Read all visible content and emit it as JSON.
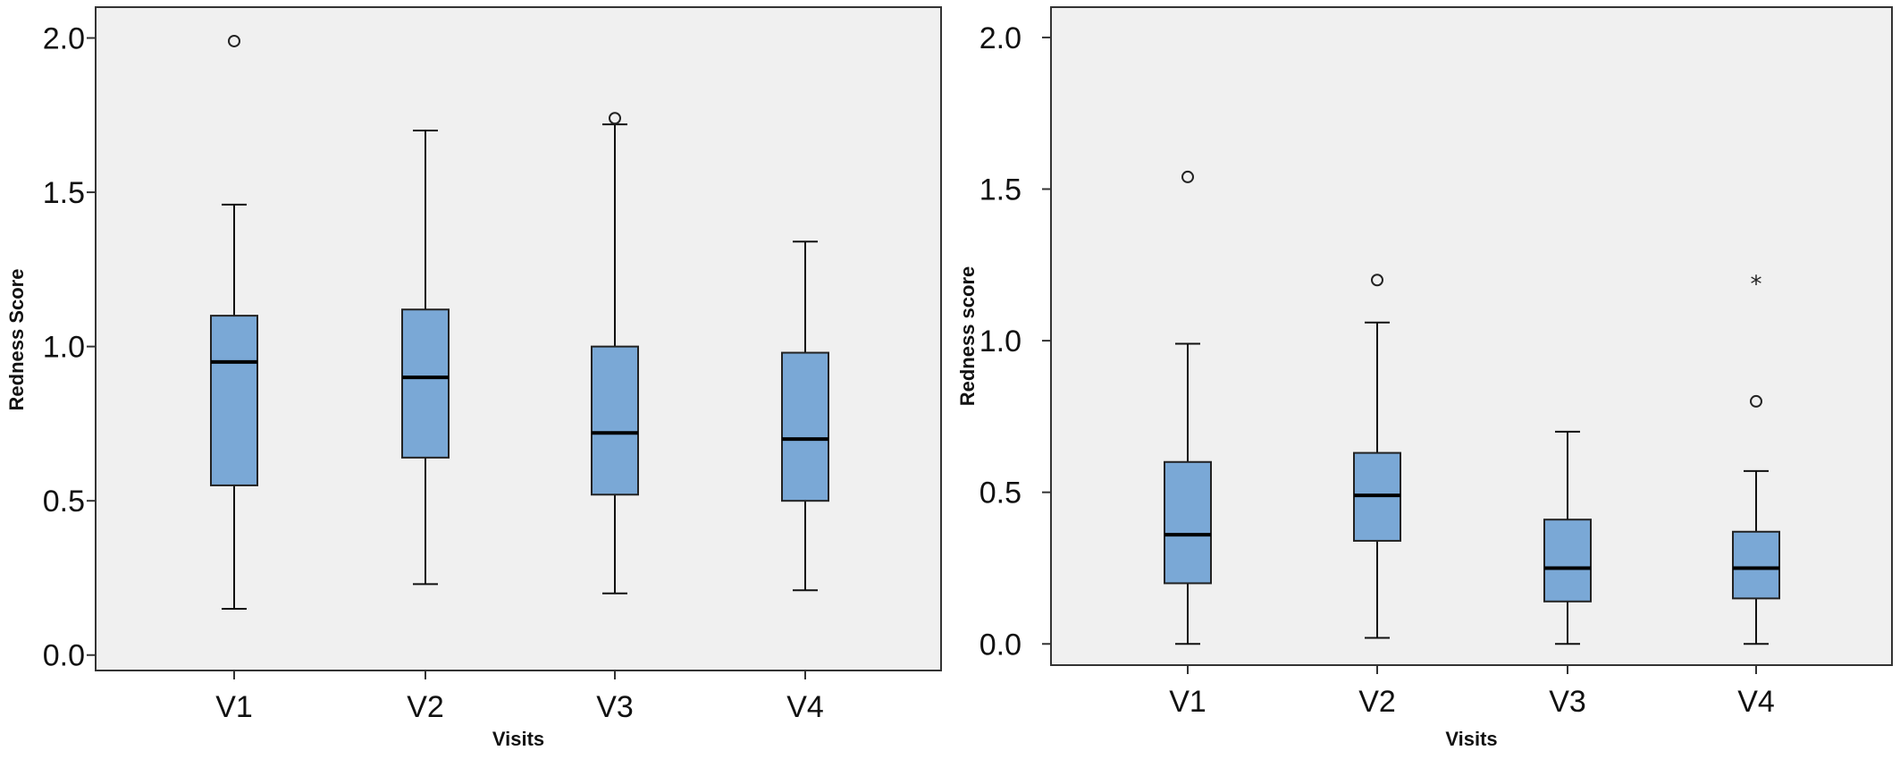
{
  "chart_data": [
    {
      "type": "box",
      "ylabel": "Redness Score",
      "xlabel": "Visits",
      "ylim": [
        -0.05,
        2.1
      ],
      "yticks": [
        "0.0",
        "0.5",
        "1.0",
        "1.5",
        "2.0"
      ],
      "categories": [
        "V1",
        "V2",
        "V3",
        "V4"
      ],
      "boxes": [
        {
          "min": 0.15,
          "q1": 0.55,
          "median": 0.95,
          "q3": 1.1,
          "max": 1.46,
          "outliers": [
            1.99
          ],
          "extremes": []
        },
        {
          "min": 0.23,
          "q1": 0.64,
          "median": 0.9,
          "q3": 1.12,
          "max": 1.7,
          "outliers": [],
          "extremes": []
        },
        {
          "min": 0.2,
          "q1": 0.52,
          "median": 0.72,
          "q3": 1.0,
          "max": 1.72,
          "outliers": [
            1.74
          ],
          "extremes": []
        },
        {
          "min": 0.21,
          "q1": 0.5,
          "median": 0.7,
          "q3": 0.98,
          "max": 1.34,
          "outliers": [],
          "extremes": []
        }
      ]
    },
    {
      "type": "box",
      "ylabel": "Redness score",
      "xlabel": "Visits",
      "ylim": [
        -0.07,
        2.1
      ],
      "yticks": [
        "0.0",
        "0.5",
        "1.0",
        "1.5",
        "2.0"
      ],
      "categories": [
        "V1",
        "V2",
        "V3",
        "V4"
      ],
      "boxes": [
        {
          "min": 0.0,
          "q1": 0.2,
          "median": 0.36,
          "q3": 0.6,
          "max": 0.99,
          "outliers": [
            1.54
          ],
          "extremes": []
        },
        {
          "min": 0.02,
          "q1": 0.34,
          "median": 0.49,
          "q3": 0.63,
          "max": 1.06,
          "outliers": [
            1.2
          ],
          "extremes": []
        },
        {
          "min": 0.0,
          "q1": 0.14,
          "median": 0.25,
          "q3": 0.41,
          "max": 0.7,
          "outliers": [],
          "extremes": []
        },
        {
          "min": 0.0,
          "q1": 0.15,
          "median": 0.25,
          "q3": 0.37,
          "max": 0.57,
          "outliers": [
            0.8
          ],
          "extremes": [
            1.2
          ]
        }
      ]
    }
  ],
  "colors": {
    "box_fill": "#7aa8d6",
    "plot_bg": "#f0f0f0"
  },
  "extreme_symbol": "*"
}
